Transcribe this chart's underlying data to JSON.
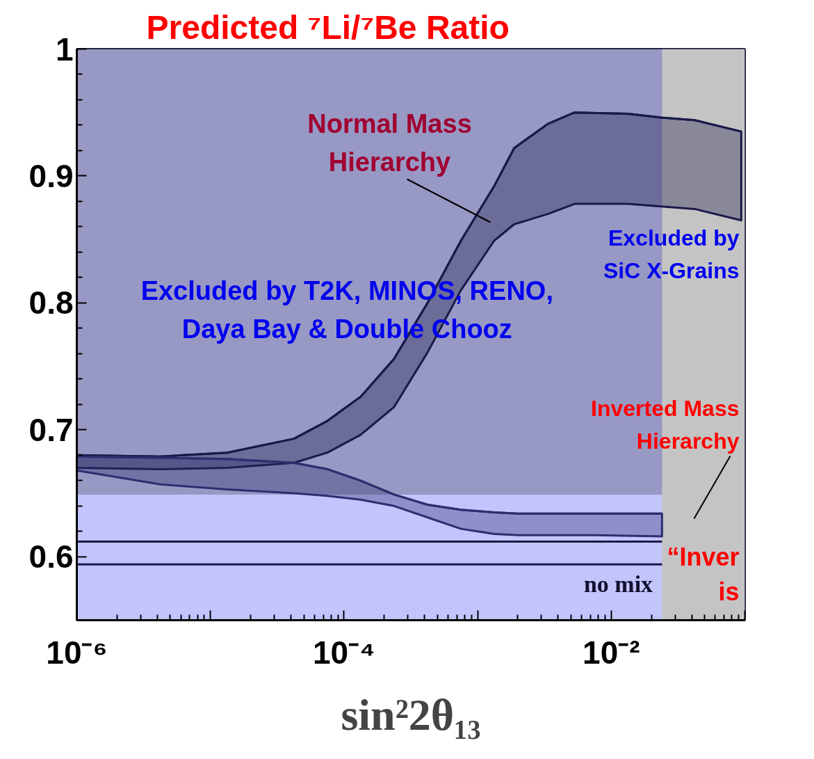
{
  "chart_data": {
    "type": "line",
    "title": "Predicted ⁷Li/⁷Be Ratio",
    "xlabel": "sin²2θ₁₃",
    "log": "x",
    "xlim": [
      1e-06,
      0.1
    ],
    "ylim": [
      0.55,
      1.0
    ],
    "xticks": [
      {
        "value": 1e-06,
        "label": "10⁻⁶"
      },
      {
        "value": 1e-05,
        "label": null
      },
      {
        "value": 0.0001,
        "label": "10⁻⁴"
      },
      {
        "value": 0.001,
        "label": null
      },
      {
        "value": 0.01,
        "label": "10⁻²"
      },
      {
        "value": 0.1,
        "label": null
      }
    ],
    "yticks": [
      0.6,
      0.7,
      0.8,
      0.9,
      1
    ],
    "grid": false,
    "bands": [
      {
        "axis": "y",
        "from": 0.649,
        "to": 1.0,
        "label": "Excluded by T2K, MINOS, RENO,\nDaya Bay & Double Chooz",
        "color": "#9898c4"
      },
      {
        "axis": "y",
        "from": 0.55,
        "to": 0.649,
        "label": null,
        "color": "#c4c4fc"
      },
      {
        "axis": "x",
        "from": 0.024,
        "to": 0.1,
        "label": "Excluded by SiC X-Grains",
        "color": "#c4c4c4"
      }
    ],
    "series": [
      {
        "color": "#1a1a4a",
        "x": [
          1e-06,
          4.22e-06,
          1.33e-05,
          4.22e-05,
          7.5e-05,
          0.000133,
          0.000237,
          0.000422,
          0.00075,
          0.00133,
          0.00188,
          0.00335,
          0.00531,
          0.0133,
          0.0237,
          0.0422,
          0.094
        ],
        "values": [
          0.68,
          0.679,
          0.682,
          0.693,
          0.707,
          0.726,
          0.756,
          0.8,
          0.849,
          0.892,
          0.922,
          0.941,
          0.95,
          0.949,
          0.946,
          0.944,
          0.935
        ],
        "lower": [
          0.67,
          0.669,
          0.67,
          0.674,
          0.682,
          0.696,
          0.718,
          0.761,
          0.81,
          0.849,
          0.862,
          0.87,
          0.878,
          0.878,
          0.876,
          0.874,
          0.865
        ],
        "upper": [
          0.68,
          0.679,
          0.682,
          0.693,
          0.707,
          0.726,
          0.756,
          0.8,
          0.849,
          0.892,
          0.922,
          0.941,
          0.95,
          0.949,
          0.946,
          0.944,
          0.935
        ]
      },
      {
        "color": "#2e2e70",
        "x": [
          1e-06,
          4.22e-06,
          1.33e-05,
          4.22e-05,
          7.5e-05,
          0.000133,
          0.000237,
          0.000422,
          0.00075,
          0.00133,
          0.002,
          0.0075,
          0.024
        ],
        "values": [
          0.679,
          0.678,
          0.677,
          0.674,
          0.669,
          0.66,
          0.649,
          0.641,
          0.637,
          0.635,
          0.634,
          0.634,
          0.634
        ],
        "lower": [
          0.668,
          0.657,
          0.653,
          0.65,
          0.648,
          0.645,
          0.64,
          0.631,
          0.622,
          0.618,
          0.617,
          0.617,
          0.616
        ],
        "upper": [
          0.679,
          0.678,
          0.677,
          0.674,
          0.669,
          0.66,
          0.649,
          0.641,
          0.637,
          0.635,
          0.634,
          0.634,
          0.634
        ]
      },
      {
        "type": "line",
        "color": "#1a1a4a",
        "x": [
          1e-06,
          0.024
        ],
        "values": [
          0.612,
          0.612
        ]
      },
      {
        "type": "line",
        "color": "#1a1a4a",
        "x": [
          1e-06,
          0.024
        ],
        "values": [
          0.594,
          0.594
        ]
      }
    ],
    "annotations": [
      "Normal Mass\nHierarchy",
      "Inverted Mass\nHierarchy",
      {
        "text": "no mix",
        "x": 0.022,
        "y": 0.594
      },
      "“Inver",
      "is"
    ]
  }
}
